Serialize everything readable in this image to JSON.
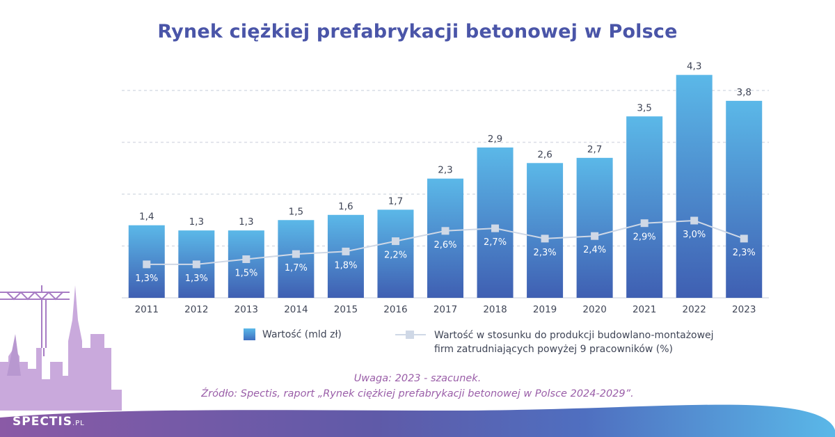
{
  "title": "Rynek ciężkiej prefabrykacji betonowej w Polsce",
  "legend": {
    "bar": "Wartość (mld zł)",
    "line_1": "Wartość w stosunku do produkcji budowlano-montażowej",
    "line_2": "firm zatrudniających powyżej 9 pracowników (%)"
  },
  "notes": {
    "uwaga": "Uwaga: 2023 - szacunek.",
    "zrodlo": "Źródło: Spectis, raport „Rynek ciężkiej prefabrykacji betonowej w Polsce 2024-2029”."
  },
  "brand": {
    "name": "SPECTIS",
    "suffix": ".PL"
  },
  "colors": {
    "title": "#4a55a8",
    "bar_top": "#5bb8e8",
    "bar_bottom": "#3f5fb2",
    "line": "#cfd8e6",
    "note": "#9a5ea8",
    "footer_left": "#8a5aa6",
    "footer_right": "#5ab8e8"
  },
  "chart_data": {
    "type": "bar",
    "title": "Rynek ciężkiej prefabrykacji betonowej w Polsce",
    "categories": [
      "2011",
      "2012",
      "2013",
      "2014",
      "2015",
      "2016",
      "2017",
      "2018",
      "2019",
      "2020",
      "2021",
      "2022",
      "2023"
    ],
    "grid": true,
    "series": [
      {
        "name": "Wartość (mld zł)",
        "type": "bar",
        "values": [
          1.4,
          1.3,
          1.3,
          1.5,
          1.6,
          1.7,
          2.3,
          2.9,
          2.6,
          2.7,
          3.5,
          4.3,
          3.8
        ],
        "labels": [
          "1,4",
          "1,3",
          "1,3",
          "1,5",
          "1,6",
          "1,7",
          "2,3",
          "2,9",
          "2,6",
          "2,7",
          "3,5",
          "4,3",
          "3,8"
        ]
      },
      {
        "name": "Wartość w stosunku do produkcji budowlano-montażowej firm zatrudniających powyżej 9 pracowników (%)",
        "type": "line",
        "values": [
          1.3,
          1.3,
          1.5,
          1.7,
          1.8,
          2.2,
          2.6,
          2.7,
          2.3,
          2.4,
          2.9,
          3.0,
          2.3
        ],
        "labels": [
          "1,3%",
          "1,3%",
          "1,5%",
          "1,7%",
          "1,8%",
          "2,2%",
          "2,6%",
          "2,7%",
          "2,3%",
          "2,4%",
          "2,9%",
          "3,0%",
          "2,3%"
        ]
      }
    ]
  }
}
